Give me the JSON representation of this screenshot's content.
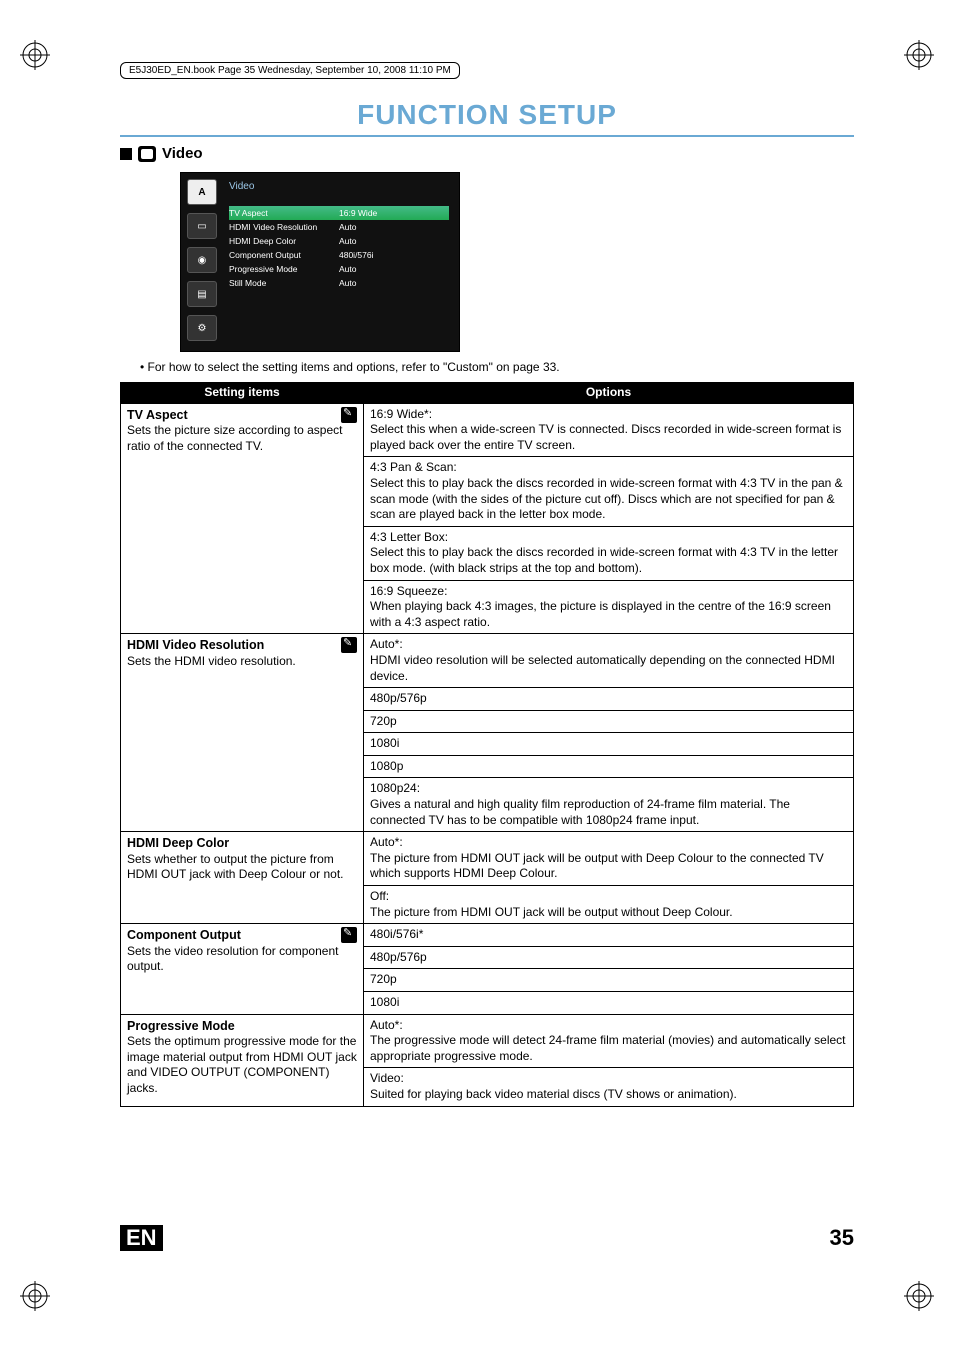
{
  "header": {
    "book_line": "E5J30ED_EN.book  Page 35  Wednesday, September 10, 2008  11:10 PM",
    "page_title": "FUNCTION SETUP"
  },
  "section": {
    "label": "Video"
  },
  "menu_screenshot": {
    "title": "Video",
    "side_selected": "A",
    "rows": [
      {
        "label": "TV Aspect",
        "value": "16:9 Wide"
      },
      {
        "label": "HDMI Video Resolution",
        "value": "Auto"
      },
      {
        "label": "HDMI Deep Color",
        "value": "Auto"
      },
      {
        "label": "Component Output",
        "value": "480i/576i"
      },
      {
        "label": "Progressive Mode",
        "value": "Auto"
      },
      {
        "label": "Still Mode",
        "value": "Auto"
      }
    ]
  },
  "note": "For how to select the setting items and options, refer to \"Custom\" on page 33.",
  "table": {
    "header_left": "Setting items",
    "header_right": "Options",
    "rows": [
      {
        "title": "TV Aspect",
        "desc": "Sets the picture size according to aspect ratio of the connected TV.",
        "wrench": true,
        "options": [
          "16:9 Wide*:\nSelect this when a wide-screen TV is connected. Discs recorded in wide-screen format is played back over the entire TV screen.",
          "4:3 Pan & Scan:\nSelect this to play back the discs recorded in wide-screen format with 4:3 TV in the pan & scan mode (with the sides of the picture cut off). Discs which are not specified for pan & scan are played back in the letter box mode.",
          "4:3 Letter Box:\nSelect this to play back the discs recorded in wide-screen format with 4:3 TV in the letter box mode. (with black strips at the top and bottom).",
          "16:9 Squeeze:\nWhen playing back 4:3 images, the picture is displayed in the centre of the 16:9 screen with a 4:3 aspect ratio."
        ]
      },
      {
        "title": "HDMI Video Resolution",
        "desc": "Sets the HDMI video resolution.",
        "wrench": true,
        "options": [
          "Auto*:\nHDMI video resolution will be selected automatically depending on the connected HDMI device.",
          "480p/576p",
          "720p",
          "1080i",
          "1080p",
          "1080p24:\nGives a natural and high quality film reproduction of 24-frame film material. The connected TV has to be compatible with 1080p24 frame input."
        ]
      },
      {
        "title": "HDMI Deep Color",
        "desc": "Sets whether to output the picture from HDMI OUT jack with Deep Colour or not.",
        "wrench": false,
        "options": [
          "Auto*:\nThe picture from HDMI OUT jack will be output with Deep Colour to the connected TV which supports HDMI Deep Colour.",
          "Off:\nThe picture from HDMI OUT jack will be output without Deep Colour."
        ]
      },
      {
        "title": "Component Output",
        "desc": "Sets the video resolution for component output.",
        "wrench": true,
        "options": [
          "480i/576i*",
          "480p/576p",
          "720p",
          "1080i"
        ]
      },
      {
        "title": "Progressive Mode",
        "desc": "Sets the optimum progressive mode for the image material output from HDMI OUT jack and VIDEO OUTPUT (COMPONENT) jacks.",
        "wrench": false,
        "options": [
          "Auto*:\nThe progressive mode will detect 24-frame film material (movies) and automatically select appropriate progressive mode.",
          "Video:\nSuited for playing back video material discs (TV shows or animation)."
        ]
      }
    ]
  },
  "footer": {
    "lang": "EN",
    "page_num": "35"
  }
}
